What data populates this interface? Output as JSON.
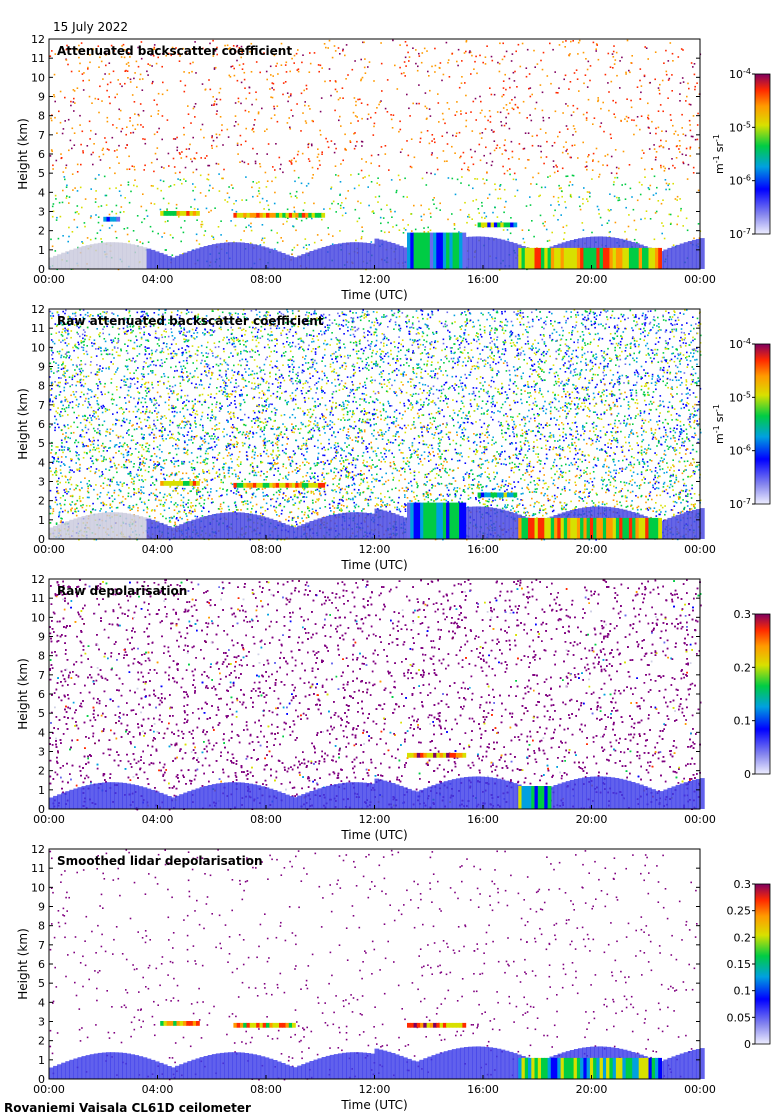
{
  "header": {
    "date": "15 July 2022"
  },
  "footer": {
    "instrument": "Rovaniemi Vaisala CL61D ceilometer"
  },
  "colors": {
    "colormap": [
      "#ffffff",
      "#cfd0e6",
      "#6a6aee",
      "#0000ff",
      "#00a0e0",
      "#00cc44",
      "#d8e000",
      "#ff9a00",
      "#ff2a00",
      "#800060"
    ],
    "background_dots": "#800080"
  },
  "chart_data": [
    {
      "type": "heatmap",
      "title": "Attenuated backscatter coefficient",
      "xlabel": "Time (UTC)",
      "ylabel": "Height (km)",
      "x_ticks": [
        "00:00",
        "04:00",
        "08:00",
        "12:00",
        "16:00",
        "20:00",
        "00:00"
      ],
      "y_ticks": [
        "0",
        "1",
        "2",
        "3",
        "4",
        "5",
        "6",
        "7",
        "8",
        "9",
        "10",
        "11",
        "12"
      ],
      "ylim": [
        0,
        12
      ],
      "colorbar": {
        "scale": "log",
        "ticks": [
          "10-7",
          "10-6",
          "10-5",
          "10-4"
        ],
        "label": "m-1 sr-1"
      },
      "noise": "sparse",
      "layers": [
        {
          "t": [
            2.0,
            2.6
          ],
          "h": 2.6,
          "v": 0.55
        },
        {
          "t": [
            4.1,
            5.5
          ],
          "h": 2.9,
          "v": 0.85
        },
        {
          "t": [
            6.8,
            10.1
          ],
          "h": 2.8,
          "v": 0.85
        },
        {
          "t": [
            13.2,
            15.3
          ],
          "h": 1.9,
          "v": 0.6
        },
        {
          "t": [
            15.8,
            17.2
          ],
          "h": 2.3,
          "v": 0.7
        },
        {
          "t": [
            17.3,
            22.5
          ],
          "h": 1.1,
          "v": 0.85
        }
      ]
    },
    {
      "type": "heatmap",
      "title": "Raw attenuated backscatter coefficient",
      "xlabel": "Time (UTC)",
      "ylabel": "Height (km)",
      "x_ticks": [
        "00:00",
        "04:00",
        "08:00",
        "12:00",
        "16:00",
        "20:00",
        "00:00"
      ],
      "y_ticks": [
        "0",
        "1",
        "2",
        "3",
        "4",
        "5",
        "6",
        "7",
        "8",
        "9",
        "10",
        "11",
        "12"
      ],
      "ylim": [
        0,
        12
      ],
      "colorbar": {
        "scale": "log",
        "ticks": [
          "10-7",
          "10-6",
          "10-5",
          "10-4"
        ],
        "label": "m-1 sr-1"
      },
      "noise": "dense",
      "layers": [
        {
          "t": [
            4.1,
            5.5
          ],
          "h": 2.9,
          "v": 0.85
        },
        {
          "t": [
            6.8,
            10.1
          ],
          "h": 2.8,
          "v": 0.85
        },
        {
          "t": [
            13.2,
            15.3
          ],
          "h": 1.9,
          "v": 0.6
        },
        {
          "t": [
            15.8,
            17.2
          ],
          "h": 2.3,
          "v": 0.7
        },
        {
          "t": [
            17.3,
            22.5
          ],
          "h": 1.1,
          "v": 0.85
        }
      ]
    },
    {
      "type": "heatmap",
      "title": "Raw depolarisation",
      "xlabel": "Time (UTC)",
      "ylabel": "Height (km)",
      "x_ticks": [
        "00:00",
        "04:00",
        "08:00",
        "12:00",
        "16:00",
        "20:00",
        "00:00"
      ],
      "y_ticks": [
        "0",
        "1",
        "2",
        "3",
        "4",
        "5",
        "6",
        "7",
        "8",
        "9",
        "10",
        "11",
        "12"
      ],
      "ylim": [
        0,
        12
      ],
      "colorbar": {
        "scale": "linear",
        "ticks": [
          "0",
          "0.1",
          "0.2",
          "0.3"
        ],
        "label": ""
      },
      "noise": "purple",
      "layers": [
        {
          "t": [
            13.2,
            15.3
          ],
          "h": 2.8,
          "v": 0.95
        },
        {
          "t": [
            17.3,
            18.5
          ],
          "h": 1.2,
          "v": 0.7
        }
      ]
    },
    {
      "type": "heatmap",
      "title": "Smoothed lidar depolarisation",
      "xlabel": "Time (UTC)",
      "ylabel": "Height (km)",
      "x_ticks": [
        "00:00",
        "04:00",
        "08:00",
        "12:00",
        "16:00",
        "20:00",
        "00:00"
      ],
      "y_ticks": [
        "0",
        "1",
        "2",
        "3",
        "4",
        "5",
        "6",
        "7",
        "8",
        "9",
        "10",
        "11",
        "12"
      ],
      "ylim": [
        0,
        12
      ],
      "colorbar": {
        "scale": "linear",
        "ticks": [
          "0",
          "0.05",
          "0.1",
          "0.15",
          "0.2",
          "0.25",
          "0.3"
        ],
        "label": ""
      },
      "noise": "sparse-purple",
      "layers": [
        {
          "t": [
            4.1,
            5.5
          ],
          "h": 2.9,
          "v": 0.9
        },
        {
          "t": [
            6.8,
            9.0
          ],
          "h": 2.8,
          "v": 0.9
        },
        {
          "t": [
            13.2,
            15.3
          ],
          "h": 2.8,
          "v": 0.95
        },
        {
          "t": [
            17.3,
            22.5
          ],
          "h": 1.1,
          "v": 0.7
        }
      ]
    }
  ]
}
